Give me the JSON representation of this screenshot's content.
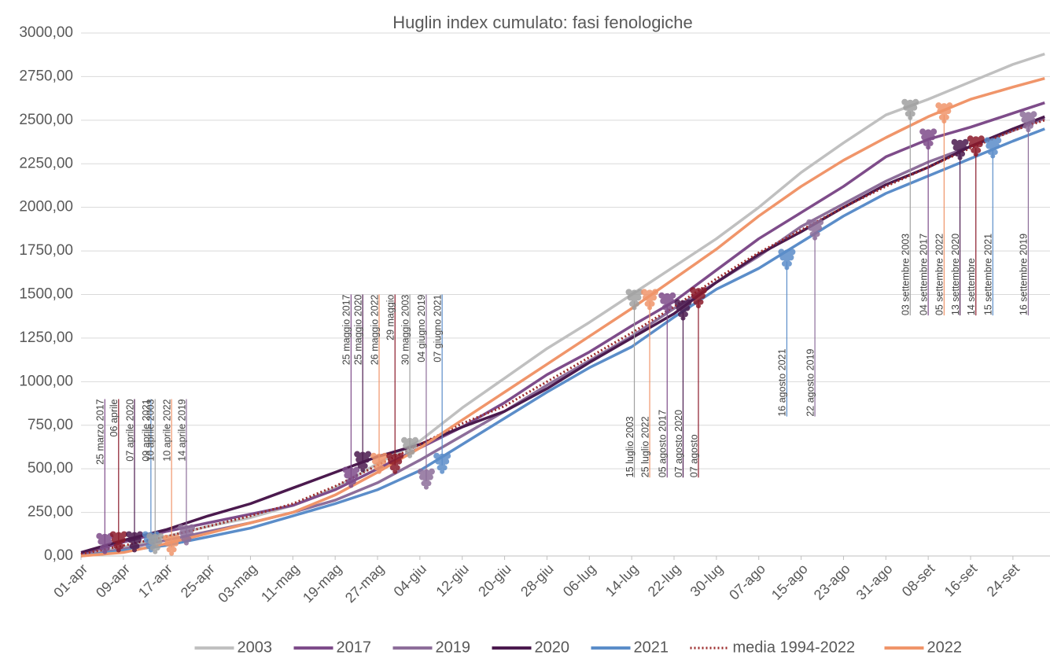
{
  "chart_data": {
    "type": "line",
    "title": "Huglin index cumulato: fasi fenologiche",
    "x": [
      0,
      8,
      16,
      24,
      32,
      40,
      48,
      56,
      64,
      72,
      80,
      88,
      96,
      104,
      112,
      120,
      128,
      136,
      144,
      152,
      160,
      168,
      176,
      182
    ],
    "xlim": [
      0,
      183
    ],
    "xticks": [
      {
        "value": 0,
        "label": "01-apr"
      },
      {
        "value": 8,
        "label": "09-apr"
      },
      {
        "value": 16,
        "label": "17-apr"
      },
      {
        "value": 24,
        "label": "25-apr"
      },
      {
        "value": 32,
        "label": "03-mag"
      },
      {
        "value": 40,
        "label": "11-mag"
      },
      {
        "value": 48,
        "label": "19-mag"
      },
      {
        "value": 56,
        "label": "27-mag"
      },
      {
        "value": 64,
        "label": "04-giu"
      },
      {
        "value": 72,
        "label": "12-giu"
      },
      {
        "value": 80,
        "label": "20-giu"
      },
      {
        "value": 88,
        "label": "28-giu"
      },
      {
        "value": 96,
        "label": "06-lug"
      },
      {
        "value": 104,
        "label": "14-lug"
      },
      {
        "value": 112,
        "label": "22-lug"
      },
      {
        "value": 120,
        "label": "30-lug"
      },
      {
        "value": 128,
        "label": "07-ago"
      },
      {
        "value": 136,
        "label": "15-ago"
      },
      {
        "value": 144,
        "label": "23-ago"
      },
      {
        "value": 152,
        "label": "31-ago"
      },
      {
        "value": 160,
        "label": "08-set"
      },
      {
        "value": 168,
        "label": "16-set"
      },
      {
        "value": 176,
        "label": "24-set"
      }
    ],
    "ylim": [
      0,
      3000
    ],
    "yticks": [
      {
        "value": 0,
        "label": "0,00"
      },
      {
        "value": 250,
        "label": "250,00"
      },
      {
        "value": 500,
        "label": "500,00"
      },
      {
        "value": 750,
        "label": "750,00"
      },
      {
        "value": 1000,
        "label": "1000,00"
      },
      {
        "value": 1250,
        "label": "1250,00"
      },
      {
        "value": 1500,
        "label": "1500,00"
      },
      {
        "value": 1750,
        "label": "1750,00"
      },
      {
        "value": 2000,
        "label": "2000,00"
      },
      {
        "value": 2250,
        "label": "2250,00"
      },
      {
        "value": 2500,
        "label": "2500,00"
      },
      {
        "value": 2750,
        "label": "2750,00"
      },
      {
        "value": 3000,
        "label": "3000,00"
      }
    ],
    "grid": true,
    "legend": "bottom",
    "series": [
      {
        "name": "2003",
        "color": "#c0c0c0",
        "style": "solid",
        "values": [
          10,
          50,
          110,
          170,
          220,
          290,
          390,
          530,
          660,
          850,
          1020,
          1190,
          1340,
          1500,
          1660,
          1820,
          2000,
          2200,
          2370,
          2530,
          2620,
          2720,
          2820,
          2880
        ]
      },
      {
        "name": "2017",
        "color": "#7e4c8a",
        "style": "solid",
        "values": [
          10,
          80,
          140,
          190,
          240,
          290,
          380,
          500,
          620,
          740,
          880,
          1040,
          1170,
          1320,
          1460,
          1640,
          1820,
          1970,
          2120,
          2290,
          2390,
          2460,
          2540,
          2600
        ]
      },
      {
        "name": "2019",
        "color": "#8d6e9a",
        "style": "solid",
        "values": [
          0,
          40,
          90,
          140,
          190,
          250,
          320,
          420,
          550,
          690,
          830,
          980,
          1120,
          1260,
          1420,
          1570,
          1720,
          1890,
          2020,
          2150,
          2260,
          2350,
          2440,
          2510
        ]
      },
      {
        "name": "2020",
        "color": "#4b1a4e",
        "style": "solid",
        "values": [
          20,
          90,
          150,
          230,
          300,
          390,
          480,
          570,
          640,
          740,
          830,
          960,
          1110,
          1250,
          1390,
          1570,
          1730,
          1860,
          2000,
          2130,
          2230,
          2350,
          2450,
          2520
        ]
      },
      {
        "name": "2021",
        "color": "#5b8dc9",
        "style": "solid",
        "values": [
          0,
          30,
          60,
          110,
          160,
          230,
          300,
          380,
          490,
          640,
          790,
          940,
          1080,
          1200,
          1370,
          1530,
          1650,
          1800,
          1950,
          2080,
          2180,
          2280,
          2380,
          2450
        ]
      },
      {
        "name": "media 1994-2022",
        "color": "#9b2a2a",
        "style": "dotted",
        "values": [
          10,
          60,
          110,
          170,
          230,
          300,
          400,
          520,
          640,
          760,
          860,
          1000,
          1140,
          1280,
          1430,
          1590,
          1740,
          1870,
          2000,
          2120,
          2230,
          2340,
          2440,
          2500
        ]
      },
      {
        "name": "2022",
        "color": "#f0956a",
        "style": "solid",
        "values": [
          0,
          20,
          70,
          130,
          190,
          250,
          350,
          480,
          620,
          780,
          940,
          1100,
          1260,
          1420,
          1590,
          1760,
          1950,
          2120,
          2270,
          2400,
          2520,
          2620,
          2690,
          2740
        ]
      }
    ],
    "annotations": [
      {
        "text": "25 marzo 2017",
        "x": 4.5,
        "y": 60,
        "y_end": 900,
        "color": "#7e4c8a"
      },
      {
        "text": "06 aprile",
        "x": 7.1,
        "y": 70,
        "y_end": 900,
        "color": "#8b1a2a"
      },
      {
        "text": "07 aprile 2020",
        "x": 10.1,
        "y": 70,
        "y_end": 900,
        "color": "#4b1a4e"
      },
      {
        "text": "09 aprile 2021",
        "x": 13.2,
        "y": 70,
        "y_end": 900,
        "color": "#5b8dc9"
      },
      {
        "text": "10 aprile 2003",
        "x": 14,
        "y": 60,
        "y_end": 900,
        "color": "#a0a0a0"
      },
      {
        "text": "10 aprile 2022",
        "x": 17.1,
        "y": 50,
        "y_end": 900,
        "color": "#f0956a"
      },
      {
        "text": "14 aprile 2019",
        "x": 19.9,
        "y": 110,
        "y_end": 900,
        "color": "#8d6e9a"
      },
      {
        "text": "25 maggio 2017",
        "x": 51,
        "y": 440,
        "y_end": 1500,
        "color": "#7e4c8a"
      },
      {
        "text": "25 maggio 2020",
        "x": 53.2,
        "y": 530,
        "y_end": 1500,
        "color": "#4b1a4e"
      },
      {
        "text": "26 maggio 2022",
        "x": 56.3,
        "y": 520,
        "y_end": 1500,
        "color": "#f0956a"
      },
      {
        "text": "29 maggio",
        "x": 59.3,
        "y": 520,
        "y_end": 1500,
        "color": "#8b1a2a"
      },
      {
        "text": "30 maggio 2003",
        "x": 62.1,
        "y": 610,
        "y_end": 1500,
        "color": "#a0a0a0"
      },
      {
        "text": "04 giugno 2019",
        "x": 65.2,
        "y": 430,
        "y_end": 1500,
        "color": "#8d6e9a"
      },
      {
        "text": "07 giugno 2021",
        "x": 68.2,
        "y": 520,
        "y_end": 1500,
        "color": "#5b8dc9"
      },
      {
        "text": "15 luglio 2003",
        "x": 104.5,
        "y": 1460,
        "y_end": 450,
        "color": "#a0a0a0"
      },
      {
        "text": "25 luglio 2022",
        "x": 107.4,
        "y": 1460,
        "y_end": 450,
        "color": "#f0956a"
      },
      {
        "text": "05 agosto 2017",
        "x": 110.7,
        "y": 1440,
        "y_end": 450,
        "color": "#7e4c8a"
      },
      {
        "text": "07 agosto 2020",
        "x": 113.7,
        "y": 1400,
        "y_end": 450,
        "color": "#4b1a4e"
      },
      {
        "text": "07 agosto",
        "x": 116.6,
        "y": 1470,
        "y_end": 450,
        "color": "#8b1a2a"
      },
      {
        "text": "16 agosto 2021",
        "x": 133.3,
        "y": 1690,
        "y_end": 800,
        "color": "#5b8dc9"
      },
      {
        "text": "22 agosto 2019",
        "x": 138.6,
        "y": 1860,
        "y_end": 800,
        "color": "#8d6e9a"
      },
      {
        "text": "03 settembre 2003",
        "x": 156.6,
        "y": 2550,
        "y_end": 1380,
        "color": "#a0a0a0"
      },
      {
        "text": "04 settembre 2017",
        "x": 160,
        "y": 2380,
        "y_end": 1380,
        "color": "#7e4c8a"
      },
      {
        "text": "05 settembre 2022",
        "x": 163,
        "y": 2530,
        "y_end": 1380,
        "color": "#f0956a"
      },
      {
        "text": "13 settembre 2020",
        "x": 166,
        "y": 2320,
        "y_end": 1380,
        "color": "#4b1a4e"
      },
      {
        "text": "14 settembre",
        "x": 169,
        "y": 2340,
        "y_end": 1380,
        "color": "#8b1a2a"
      },
      {
        "text": "15 settembre 2021",
        "x": 172.2,
        "y": 2330,
        "y_end": 1380,
        "color": "#5b8dc9"
      },
      {
        "text": "16 settembre 2019",
        "x": 178.9,
        "y": 2480,
        "y_end": 1380,
        "color": "#8d6e9a"
      }
    ]
  }
}
